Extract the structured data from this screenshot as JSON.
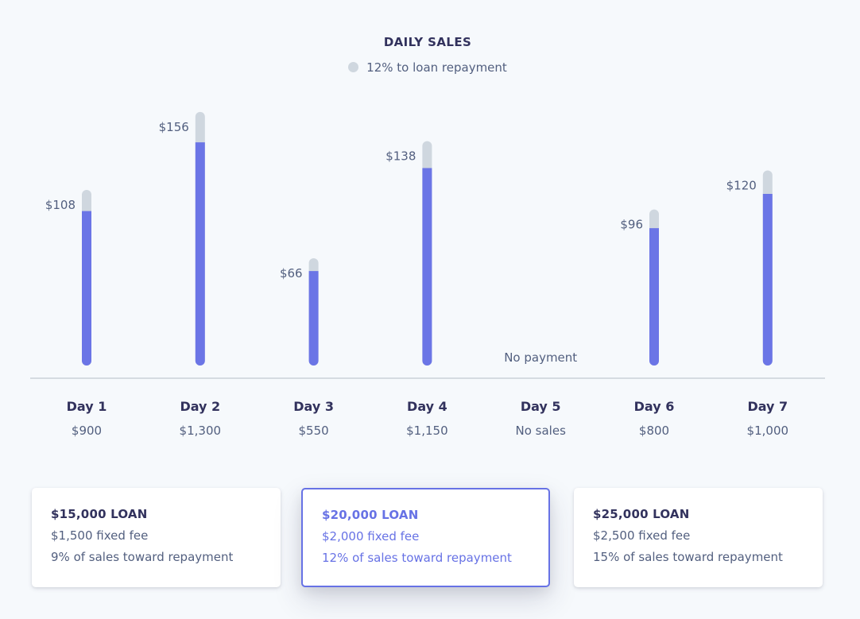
{
  "chart_data": {
    "type": "bar",
    "title": "DAILY SALES",
    "legend": [
      {
        "label": "12% to loan repayment",
        "color": "#cfd7df"
      }
    ],
    "categories": [
      "Day 1",
      "Day 2",
      "Day 3",
      "Day 4",
      "Day 5",
      "Day 6",
      "Day 7"
    ],
    "sales_labels": [
      "$900",
      "$1,300",
      "$550",
      "$1,150",
      "No sales",
      "$800",
      "$1,000"
    ],
    "sales_values": [
      900,
      1300,
      550,
      1150,
      0,
      800,
      1000
    ],
    "repayment_labels": [
      "$108",
      "$156",
      "$66",
      "$138",
      "",
      "$96",
      "$120"
    ],
    "repayment_values": [
      108,
      156,
      66,
      138,
      0,
      96,
      120
    ],
    "repayment_rate": 0.12,
    "no_payment_label": "No payment",
    "colors": {
      "sales": "#6b75e6",
      "repayment": "#cfd7df",
      "axis": "#d5dbe1"
    }
  },
  "loan_options": [
    {
      "title": "$15,000 LOAN",
      "fee": "$1,500 fixed fee",
      "repayment": "9% of sales toward repayment",
      "selected": false
    },
    {
      "title": "$20,000 LOAN",
      "fee": "$2,000 fixed fee",
      "repayment": "12% of sales toward repayment",
      "selected": true
    },
    {
      "title": "$25,000 LOAN",
      "fee": "$2,500 fixed fee",
      "repayment": "15% of sales toward repayment",
      "selected": false
    }
  ],
  "accent_color": "#6772e5"
}
